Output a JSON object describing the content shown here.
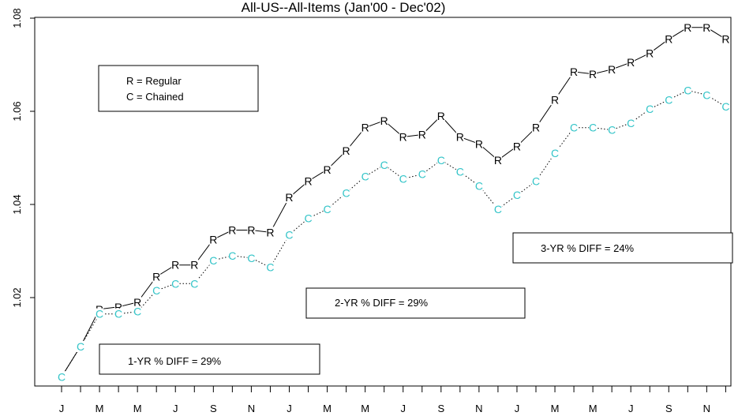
{
  "chart_data": {
    "type": "line",
    "title": "All-US--All-Items  (Jan'00 - Dec'02)",
    "xlabel": "",
    "ylabel": "",
    "x_tick_labels": [
      "J",
      "M",
      "M",
      "J",
      "S",
      "N",
      "J",
      "M",
      "M",
      "J",
      "S",
      "N",
      "J",
      "M",
      "M",
      "J",
      "S",
      "N"
    ],
    "ylim": [
      1.0,
      1.08
    ],
    "y_ticks": [
      1.02,
      1.04,
      1.06,
      1.08
    ],
    "y_tick_labels": [
      "1.02",
      "1.04",
      "1.06",
      "1.08"
    ],
    "grid": false,
    "series": [
      {
        "name": "Regular",
        "marker": "R",
        "color": "#000000",
        "line_style": "solid",
        "values": [
          1.003,
          1.0095,
          1.0175,
          1.018,
          1.019,
          1.0245,
          1.027,
          1.027,
          1.0325,
          1.0345,
          1.0345,
          1.034,
          1.0415,
          1.045,
          1.0475,
          1.0515,
          1.0565,
          1.058,
          1.0545,
          1.055,
          1.059,
          1.0545,
          1.053,
          1.0495,
          1.0525,
          1.0565,
          1.0625,
          1.0685,
          1.068,
          1.069,
          1.0705,
          1.0725,
          1.0755,
          1.078,
          1.078,
          1.0755
        ]
      },
      {
        "name": "Chained",
        "marker": "C",
        "color": "#33c4c8",
        "line_style": "dotted",
        "values": [
          1.003,
          1.0095,
          1.0165,
          1.0165,
          1.017,
          1.0215,
          1.023,
          1.023,
          1.028,
          1.029,
          1.0285,
          1.0265,
          1.0335,
          1.037,
          1.039,
          1.0425,
          1.046,
          1.0485,
          1.0455,
          1.0465,
          1.0495,
          1.047,
          1.044,
          1.039,
          1.042,
          1.045,
          1.051,
          1.0565,
          1.0565,
          1.056,
          1.0575,
          1.0605,
          1.0625,
          1.0645,
          1.0635,
          1.061
        ]
      }
    ],
    "annotations": [
      {
        "text": "1-YR % DIFF = 29%"
      },
      {
        "text": "2-YR % DIFF = 29%"
      },
      {
        "text": "3-YR % DIFF = 24%"
      }
    ],
    "legend": {
      "placement": "top-left",
      "entries": [
        "R = Regular",
        "C = Chained"
      ]
    }
  }
}
